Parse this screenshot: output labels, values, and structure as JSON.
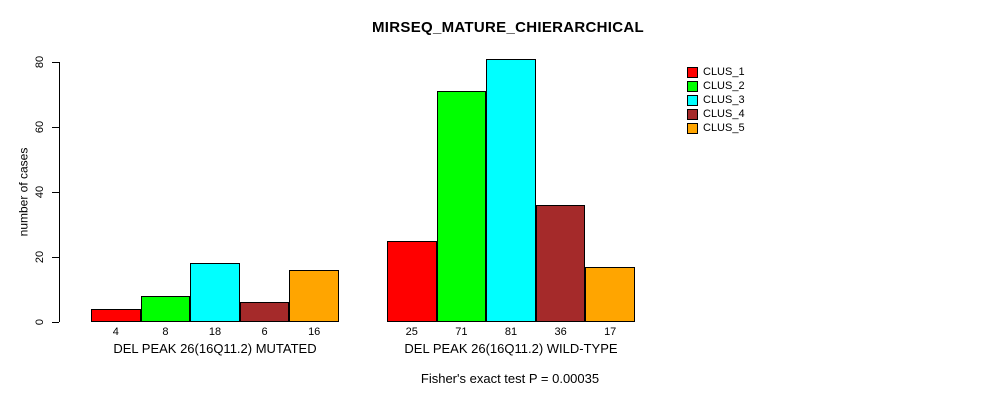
{
  "chart_data": {
    "type": "bar",
    "title": "MIRSEQ_MATURE_CHIERARCHICAL",
    "ylabel": "number of cases",
    "xlabel": "",
    "ylim": [
      0,
      80
    ],
    "yticks": [
      0,
      20,
      40,
      60,
      80
    ],
    "grid": false,
    "legend_position": "top-right",
    "categories": [
      "DEL PEAK 26(16Q11.2) MUTATED",
      "DEL PEAK 26(16Q11.2) WILD-TYPE"
    ],
    "series": [
      {
        "name": "CLUS_1",
        "color": "#ff0000",
        "values": [
          4,
          25
        ]
      },
      {
        "name": "CLUS_2",
        "color": "#00ff00",
        "values": [
          8,
          71
        ]
      },
      {
        "name": "CLUS_3",
        "color": "#00ffff",
        "values": [
          18,
          81
        ]
      },
      {
        "name": "CLUS_4",
        "color": "#a52a2a",
        "values": [
          6,
          36
        ]
      },
      {
        "name": "CLUS_5",
        "color": "#ffa500",
        "values": [
          16,
          17
        ]
      }
    ],
    "bar_value_labels_shown": true,
    "annotation": "Fisher's exact test P = 0.00035"
  }
}
